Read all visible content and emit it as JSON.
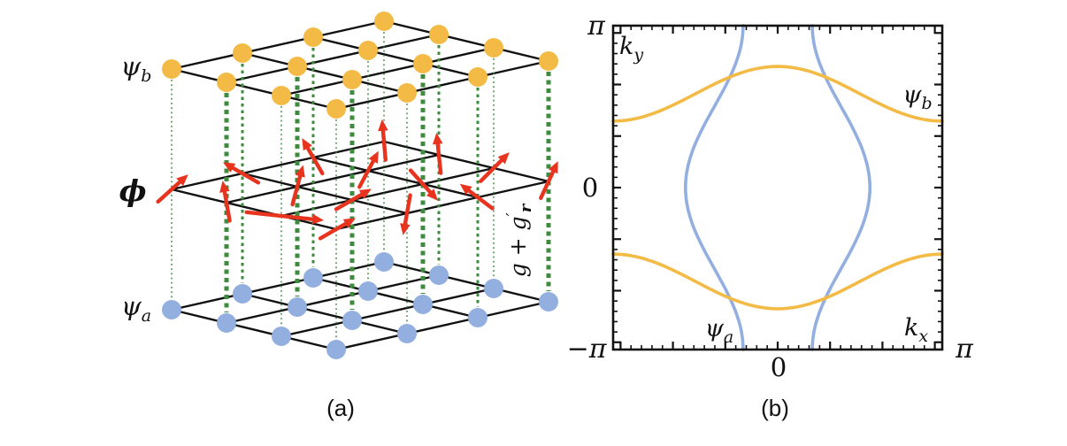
{
  "panel_a": {
    "caption": "(a)",
    "labels": {
      "top": {
        "main": "ψ",
        "sub": "b"
      },
      "middle": {
        "main": "ϕ"
      },
      "bottom": {
        "main": "ψ",
        "sub": "a"
      },
      "coupling": {
        "base": "g + g",
        "prime": "′",
        "sub": "r"
      }
    },
    "colors": {
      "site_top": "#F3BB45",
      "site_bottom": "#92AFDF",
      "bond": "#3D8B3D",
      "spin_arrow": "#E8341F",
      "lattice_line": "#111111"
    },
    "lattice_size": {
      "rows": 4,
      "cols": 4,
      "layers": [
        "psi_b",
        "phi",
        "psi_a"
      ]
    },
    "spin_angles_deg": [
      [
        42,
        100,
        -6,
        30
      ],
      [
        150,
        75,
        30,
        -100
      ],
      [
        120,
        62,
        -48,
        143
      ],
      [
        95,
        96,
        45,
        65
      ]
    ],
    "spin_lengths": [
      [
        46,
        46,
        88,
        46
      ],
      [
        46,
        46,
        46,
        46
      ],
      [
        46,
        46,
        46,
        46
      ],
      [
        46,
        46,
        46,
        46
      ]
    ],
    "bond_weights": [
      [
        1.5,
        5,
        1.5,
        1.5
      ],
      [
        3,
        5,
        5,
        1.5
      ],
      [
        3,
        1.5,
        5,
        3
      ],
      [
        1.5,
        3,
        1.5,
        5
      ]
    ]
  },
  "panel_b": {
    "caption": "(b)"
  },
  "chart_data": {
    "type": "line",
    "title": "",
    "xlabel": {
      "main": "k",
      "sub": "x"
    },
    "ylabel": {
      "main": "k",
      "sub": "y"
    },
    "xlim": [
      -3.14159,
      3.14159
    ],
    "ylim": [
      -3.14159,
      3.14159
    ],
    "grid": false,
    "legend_position": "none",
    "tick_labels": {
      "y_top": "π",
      "y_zero": "0",
      "corner": "−π",
      "x_zero": "0",
      "x_right": "π"
    },
    "minor_tick_step": 0.2,
    "major_tick_step": 1,
    "series": [
      {
        "name": "psi_a",
        "label": {
          "main": "ψ",
          "sub": "a"
        },
        "color": "#92AFDF",
        "orientation": "vertical",
        "model": "kx = ±(a + b·cos(ky)), open Fermi sheets",
        "a": 1.21,
        "b": 0.55
      },
      {
        "name": "psi_b",
        "label": {
          "main": "ψ",
          "sub": "b"
        },
        "color": "#F3BB45",
        "orientation": "horizontal",
        "model": "ky = ±(a + b·cos(kx)), open Fermi sheets",
        "a": 1.82,
        "b": 0.53
      }
    ]
  }
}
